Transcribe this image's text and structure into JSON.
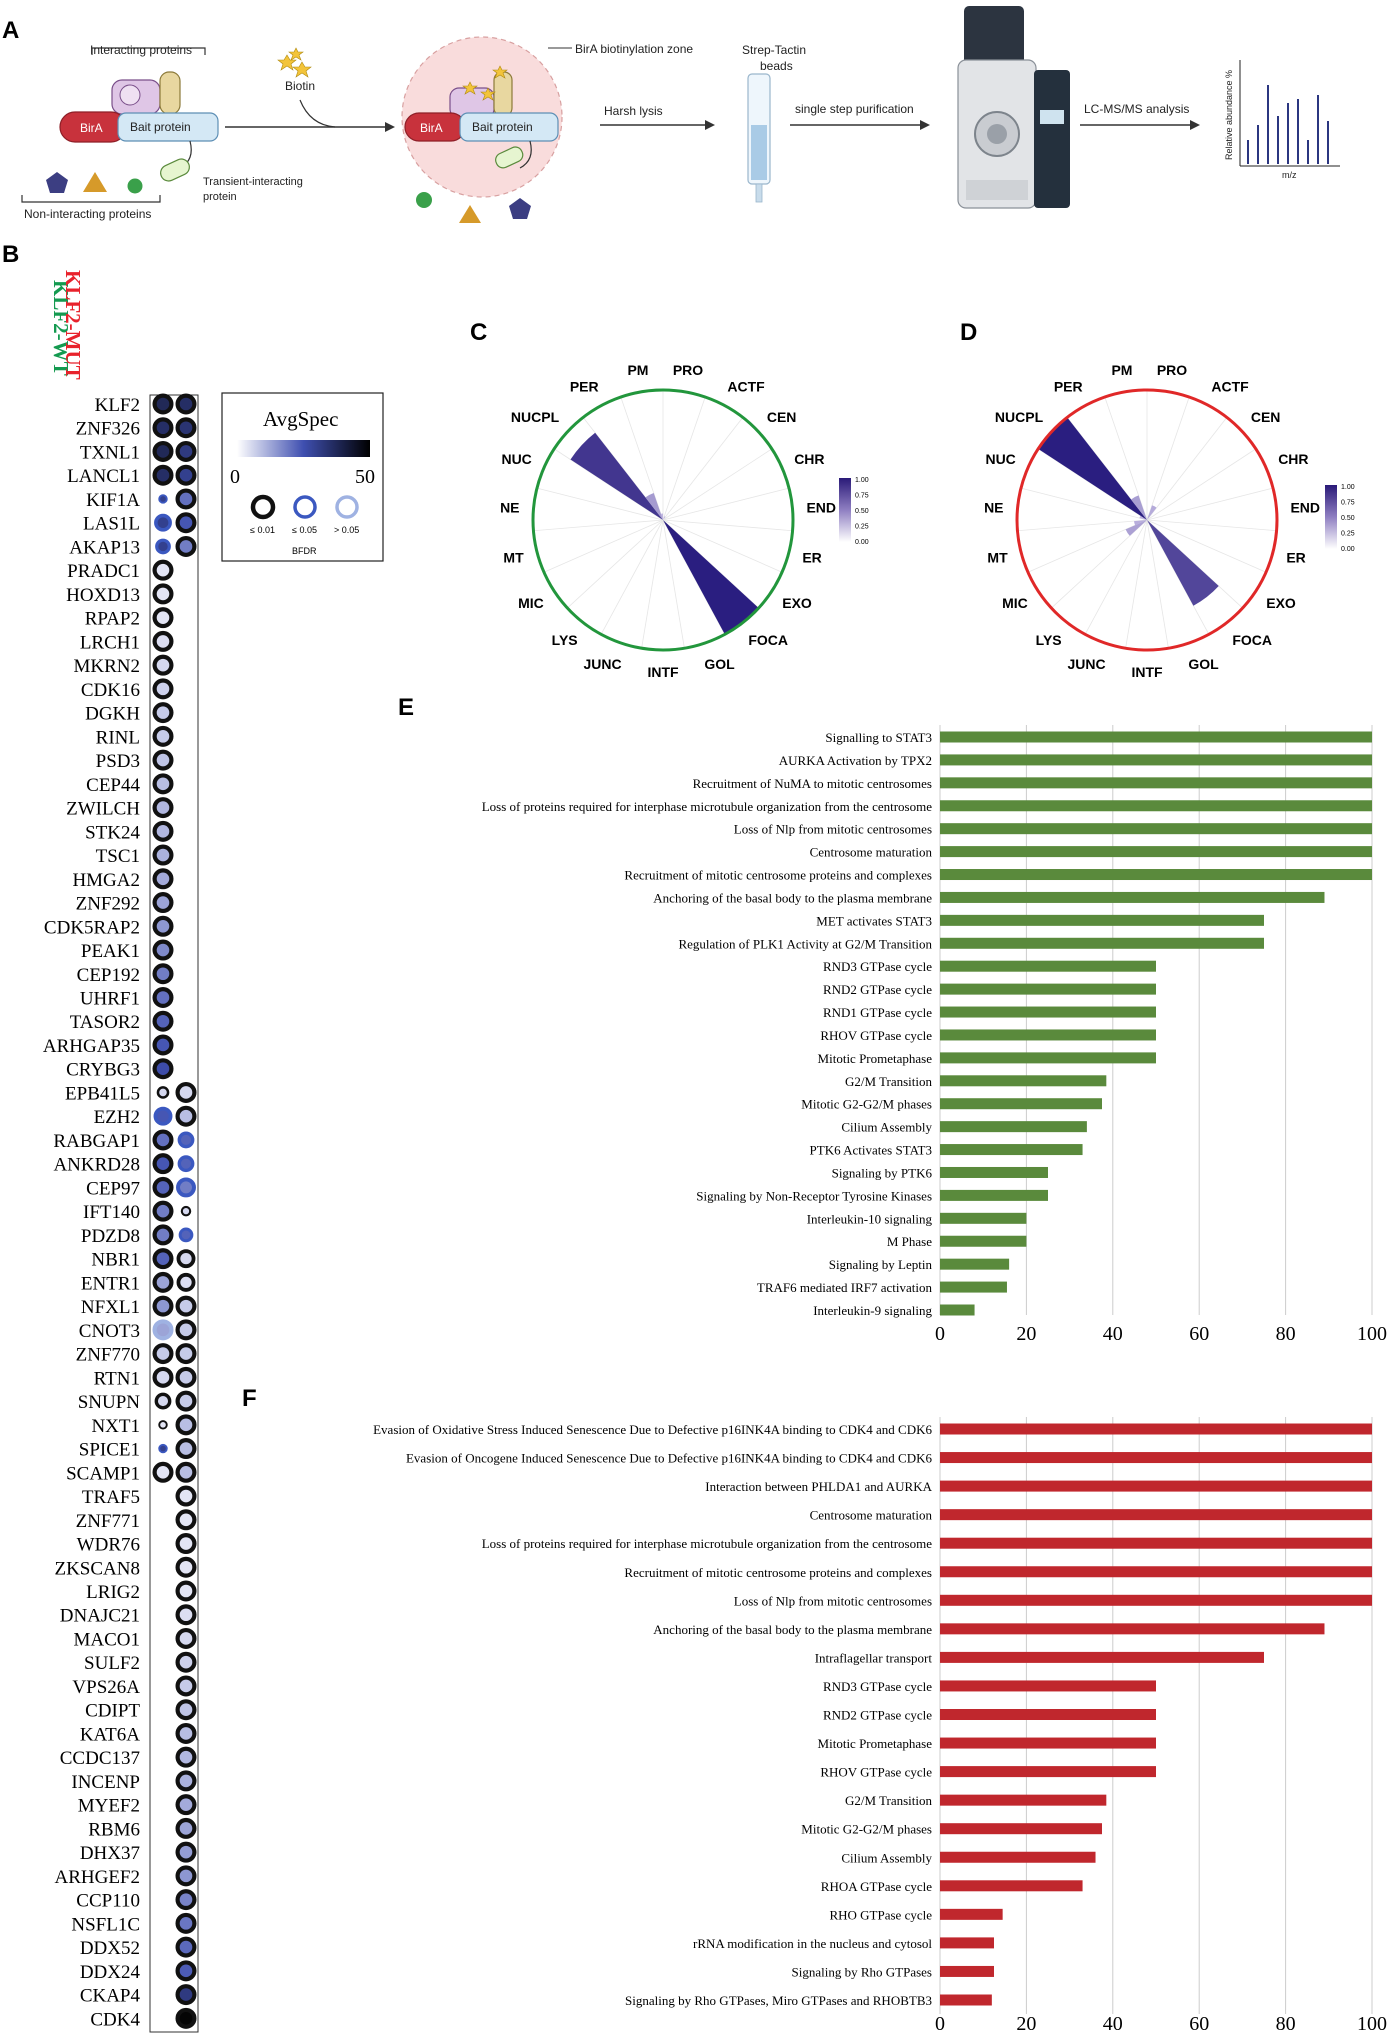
{
  "panel_letters": {
    "a": "A",
    "b": "B",
    "c": "C",
    "d": "D",
    "e": "E",
    "f": "F"
  },
  "workflow": {
    "interacting_proteins": "Interacting proteins",
    "birA": "BirA",
    "bait": "Bait protein",
    "transient": "Transient-interacting",
    "transient2": "protein",
    "non_interacting": "Non-interacting proteins",
    "biotin": "Biotin",
    "zone": "BirA biotinylation zone",
    "harsh_lysis": "Harsh lysis",
    "strep": "Strep-Tactin",
    "beads": "beads",
    "single_step": "single step purification",
    "lcms": "LC-MS/MS analysis",
    "rel_abundance": "Relative abundance %",
    "mz": "m/z",
    "colors": {
      "birA": "#c8323c",
      "bait": "#d4e8f5",
      "zone": "#f9dcdc"
    }
  },
  "dotplot": {
    "col_wt": "KLF2-WT",
    "col_mut": "KLF2-MUT",
    "col_wt_color": "#149a50",
    "col_mut_color": "#e8222c",
    "legend": {
      "title": "AvgSpec",
      "min": "0",
      "max": "50",
      "bfdr_title": "BFDR",
      "bfdr_labels": [
        "≤ 0.01",
        "≤ 0.05",
        "> 0.05"
      ]
    },
    "genes": [
      {
        "name": "KLF2",
        "wt": {
          "a": 38,
          "f": 1,
          "b": 0
        },
        "mut": {
          "a": 36,
          "f": 1,
          "b": 0
        }
      },
      {
        "name": "ZNF326",
        "wt": {
          "a": 36,
          "f": 1,
          "b": 0
        },
        "mut": {
          "a": 34,
          "f": 1,
          "b": 0
        }
      },
      {
        "name": "TXNL1",
        "wt": {
          "a": 38,
          "f": 1,
          "b": 0
        },
        "mut": {
          "a": 32,
          "f": 1,
          "b": 0
        }
      },
      {
        "name": "LANCL1",
        "wt": {
          "a": 36,
          "f": 1,
          "b": 0
        },
        "mut": {
          "a": 30,
          "f": 1,
          "b": 0
        }
      },
      {
        "name": "KIF1A",
        "wt": {
          "a": 30,
          "f": 0.45,
          "b": 1
        },
        "mut": {
          "a": 20,
          "f": 1,
          "b": 0
        }
      },
      {
        "name": "LAS1L",
        "wt": {
          "a": 30,
          "f": 0.85,
          "b": 1
        },
        "mut": {
          "a": 24,
          "f": 1,
          "b": 0
        }
      },
      {
        "name": "AKAP13",
        "wt": {
          "a": 30,
          "f": 0.75,
          "b": 1
        },
        "mut": {
          "a": 18,
          "f": 1,
          "b": 0
        }
      },
      {
        "name": "PRADC1",
        "wt": {
          "a": 2,
          "f": 1,
          "b": 0
        },
        "mut": null
      },
      {
        "name": "HOXD13",
        "wt": {
          "a": 2,
          "f": 1,
          "b": 0
        },
        "mut": null
      },
      {
        "name": "RPAP2",
        "wt": {
          "a": 2,
          "f": 1,
          "b": 0
        },
        "mut": null
      },
      {
        "name": "LRCH1",
        "wt": {
          "a": 3,
          "f": 1,
          "b": 0
        },
        "mut": null
      },
      {
        "name": "MKRN2",
        "wt": {
          "a": 4,
          "f": 1,
          "b": 0
        },
        "mut": null
      },
      {
        "name": "CDK16",
        "wt": {
          "a": 5,
          "f": 1,
          "b": 0
        },
        "mut": null
      },
      {
        "name": "DGKH",
        "wt": {
          "a": 6,
          "f": 1,
          "b": 0
        },
        "mut": null
      },
      {
        "name": "RINL",
        "wt": {
          "a": 6,
          "f": 1,
          "b": 0
        },
        "mut": null
      },
      {
        "name": "PSD3",
        "wt": {
          "a": 7,
          "f": 1,
          "b": 0
        },
        "mut": null
      },
      {
        "name": "CEP44",
        "wt": {
          "a": 8,
          "f": 1,
          "b": 0
        },
        "mut": null
      },
      {
        "name": "ZWILCH",
        "wt": {
          "a": 9,
          "f": 1,
          "b": 0
        },
        "mut": null
      },
      {
        "name": "STK24",
        "wt": {
          "a": 9,
          "f": 1,
          "b": 0
        },
        "mut": null
      },
      {
        "name": "TSC1",
        "wt": {
          "a": 10,
          "f": 1,
          "b": 0
        },
        "mut": null
      },
      {
        "name": "HMGA2",
        "wt": {
          "a": 11,
          "f": 1,
          "b": 0
        },
        "mut": null
      },
      {
        "name": "ZNF292",
        "wt": {
          "a": 12,
          "f": 1,
          "b": 0
        },
        "mut": null
      },
      {
        "name": "CDK5RAP2",
        "wt": {
          "a": 14,
          "f": 1,
          "b": 0
        },
        "mut": null
      },
      {
        "name": "PEAK1",
        "wt": {
          "a": 16,
          "f": 1,
          "b": 0
        },
        "mut": null
      },
      {
        "name": "CEP192",
        "wt": {
          "a": 18,
          "f": 1,
          "b": 0
        },
        "mut": null
      },
      {
        "name": "UHRF1",
        "wt": {
          "a": 20,
          "f": 1,
          "b": 0
        },
        "mut": null
      },
      {
        "name": "TASOR2",
        "wt": {
          "a": 22,
          "f": 1,
          "b": 0
        },
        "mut": null
      },
      {
        "name": "ARHGAP35",
        "wt": {
          "a": 24,
          "f": 1,
          "b": 0
        },
        "mut": null
      },
      {
        "name": "CRYBG3",
        "wt": {
          "a": 26,
          "f": 1,
          "b": 0
        },
        "mut": null
      },
      {
        "name": "EPB41L5",
        "wt": {
          "a": 4,
          "f": 0.6,
          "b": 0
        },
        "mut": {
          "a": 4,
          "f": 1,
          "b": 0
        }
      },
      {
        "name": "EZH2",
        "wt": {
          "a": 24,
          "f": 0.9,
          "b": 1
        },
        "mut": {
          "a": 8,
          "f": 1,
          "b": 0
        }
      },
      {
        "name": "RABGAP1",
        "wt": {
          "a": 20,
          "f": 1,
          "b": 0
        },
        "mut": {
          "a": 22,
          "f": 0.8,
          "b": 1
        }
      },
      {
        "name": "ANKRD28",
        "wt": {
          "a": 24,
          "f": 1,
          "b": 0
        },
        "mut": {
          "a": 22,
          "f": 0.8,
          "b": 1
        }
      },
      {
        "name": "CEP97",
        "wt": {
          "a": 22,
          "f": 1,
          "b": 0
        },
        "mut": {
          "a": 18,
          "f": 0.95,
          "b": 1
        }
      },
      {
        "name": "IFT140",
        "wt": {
          "a": 18,
          "f": 1,
          "b": 0
        },
        "mut": {
          "a": 4,
          "f": 0.5,
          "b": 0
        }
      },
      {
        "name": "PDZD8",
        "wt": {
          "a": 18,
          "f": 1,
          "b": 0
        },
        "mut": {
          "a": 22,
          "f": 0.7,
          "b": 1
        }
      },
      {
        "name": "NBR1",
        "wt": {
          "a": 22,
          "f": 1,
          "b": 0
        },
        "mut": {
          "a": 4,
          "f": 0.9,
          "b": 0
        }
      },
      {
        "name": "ENTR1",
        "wt": {
          "a": 12,
          "f": 1,
          "b": 0
        },
        "mut": {
          "a": 3,
          "f": 0.9,
          "b": 0
        }
      },
      {
        "name": "NFXL1",
        "wt": {
          "a": 14,
          "f": 1,
          "b": 0
        },
        "mut": {
          "a": 6,
          "f": 1,
          "b": 0
        }
      },
      {
        "name": "CNOT3",
        "wt": {
          "a": 12,
          "f": 1,
          "b": 2
        },
        "mut": {
          "a": 6,
          "f": 1,
          "b": 0
        }
      },
      {
        "name": "ZNF770",
        "wt": {
          "a": 6,
          "f": 1,
          "b": 0
        },
        "mut": {
          "a": 6,
          "f": 1,
          "b": 0
        }
      },
      {
        "name": "RTN1",
        "wt": {
          "a": 4,
          "f": 1,
          "b": 0
        },
        "mut": {
          "a": 6,
          "f": 1,
          "b": 0
        }
      },
      {
        "name": "SNUPN",
        "wt": {
          "a": 4,
          "f": 0.8,
          "b": 0
        },
        "mut": {
          "a": 6,
          "f": 1,
          "b": 0
        }
      },
      {
        "name": "NXT1",
        "wt": {
          "a": 2,
          "f": 0.45,
          "b": 0
        },
        "mut": {
          "a": 8,
          "f": 1,
          "b": 0
        }
      },
      {
        "name": "SPICE1",
        "wt": {
          "a": 30,
          "f": 0.45,
          "b": 1
        },
        "mut": {
          "a": 8,
          "f": 1,
          "b": 0
        }
      },
      {
        "name": "SCAMP1",
        "wt": {
          "a": 2,
          "f": 1,
          "b": 0
        },
        "mut": {
          "a": 8,
          "f": 1,
          "b": 0
        }
      },
      {
        "name": "TRAF5",
        "wt": null,
        "mut": {
          "a": 2,
          "f": 1,
          "b": 0
        }
      },
      {
        "name": "ZNF771",
        "wt": null,
        "mut": {
          "a": 2,
          "f": 1,
          "b": 0
        }
      },
      {
        "name": "WDR76",
        "wt": null,
        "mut": {
          "a": 2,
          "f": 1,
          "b": 0
        }
      },
      {
        "name": "ZKSCAN8",
        "wt": null,
        "mut": {
          "a": 2,
          "f": 1,
          "b": 0
        }
      },
      {
        "name": "LRIG2",
        "wt": null,
        "mut": {
          "a": 2,
          "f": 1,
          "b": 0
        }
      },
      {
        "name": "DNAJC21",
        "wt": null,
        "mut": {
          "a": 3,
          "f": 1,
          "b": 0
        }
      },
      {
        "name": "MACO1",
        "wt": null,
        "mut": {
          "a": 4,
          "f": 1,
          "b": 0
        }
      },
      {
        "name": "SULF2",
        "wt": null,
        "mut": {
          "a": 5,
          "f": 1,
          "b": 0
        }
      },
      {
        "name": "VPS26A",
        "wt": null,
        "mut": {
          "a": 6,
          "f": 1,
          "b": 0
        }
      },
      {
        "name": "CDIPT",
        "wt": null,
        "mut": {
          "a": 7,
          "f": 1,
          "b": 0
        }
      },
      {
        "name": "KAT6A",
        "wt": null,
        "mut": {
          "a": 8,
          "f": 1,
          "b": 0
        }
      },
      {
        "name": "CCDC137",
        "wt": null,
        "mut": {
          "a": 9,
          "f": 1,
          "b": 0
        }
      },
      {
        "name": "INCENP",
        "wt": null,
        "mut": {
          "a": 10,
          "f": 1,
          "b": 0
        }
      },
      {
        "name": "MYEF2",
        "wt": null,
        "mut": {
          "a": 11,
          "f": 1,
          "b": 0
        }
      },
      {
        "name": "RBM6",
        "wt": null,
        "mut": {
          "a": 12,
          "f": 1,
          "b": 0
        }
      },
      {
        "name": "DHX37",
        "wt": null,
        "mut": {
          "a": 13,
          "f": 1,
          "b": 0
        }
      },
      {
        "name": "ARHGEF2",
        "wt": null,
        "mut": {
          "a": 14,
          "f": 1,
          "b": 0
        }
      },
      {
        "name": "CCP110",
        "wt": null,
        "mut": {
          "a": 17,
          "f": 1,
          "b": 0
        }
      },
      {
        "name": "NSFL1C",
        "wt": null,
        "mut": {
          "a": 19,
          "f": 1,
          "b": 0
        }
      },
      {
        "name": "DDX52",
        "wt": null,
        "mut": {
          "a": 21,
          "f": 1,
          "b": 0
        }
      },
      {
        "name": "DDX24",
        "wt": null,
        "mut": {
          "a": 23,
          "f": 1,
          "b": 0
        }
      },
      {
        "name": "CKAP4",
        "wt": null,
        "mut": {
          "a": 32,
          "f": 1,
          "b": 0
        }
      },
      {
        "name": "CDK4",
        "wt": null,
        "mut": {
          "a": 50,
          "f": 1,
          "b": 0
        }
      }
    ]
  },
  "chart_data": [
    {
      "type": "polar-bar",
      "panel": "C",
      "ring_color": "#22963c",
      "categories": [
        "PRO",
        "ACTF",
        "CEN",
        "CHR",
        "END",
        "ER",
        "EXO",
        "FOCA",
        "GOL",
        "INTF",
        "JUNC",
        "LYS",
        "MIC",
        "MT",
        "NE",
        "NUC",
        "NUCPL",
        "PER",
        "PM"
      ],
      "values": [
        0,
        0.03,
        0,
        0,
        0,
        0,
        0,
        1.0,
        0,
        0,
        0,
        0,
        0,
        0,
        0,
        0,
        0.85,
        0.22,
        0.05
      ],
      "colorbar": {
        "ticks": [
          "1.00",
          "0.75",
          "0.50",
          "0.25",
          "0.00"
        ]
      }
    },
    {
      "type": "polar-bar",
      "panel": "D",
      "ring_color": "#e02828",
      "categories": [
        "PRO",
        "ACTF",
        "CEN",
        "CHR",
        "END",
        "ER",
        "EXO",
        "FOCA",
        "GOL",
        "INTF",
        "JUNC",
        "LYS",
        "MIC",
        "MT",
        "NE",
        "NUC",
        "NUCPL",
        "PER",
        "PM"
      ],
      "values": [
        0,
        0.12,
        0,
        0,
        0,
        0,
        0,
        0.75,
        0,
        0,
        0,
        0,
        0.18,
        0.1,
        0,
        0.06,
        1.0,
        0.2,
        0
      ],
      "colorbar": {
        "ticks": [
          "1.00",
          "0.75",
          "0.50",
          "0.25",
          "0.00"
        ]
      }
    },
    {
      "type": "bar",
      "orientation": "horizontal",
      "panel": "E",
      "color": "#5a8a3c",
      "xlim": [
        0,
        100
      ],
      "xticks": [
        "0",
        "20",
        "40",
        "60",
        "80",
        "100"
      ],
      "categories": [
        "Signalling to STAT3",
        "AURKA Activation by TPX2",
        "Recruitment of NuMA to mitotic centrosomes",
        "Loss of proteins required for interphase microtubule organization from the centrosome",
        "Loss of Nlp from mitotic centrosomes",
        "Centrosome maturation",
        "Recruitment of mitotic centrosome proteins and complexes",
        "Anchoring of the basal body to the plasma membrane",
        "MET activates STAT3",
        "Regulation of PLK1 Activity at G2/M Transition",
        "RND3 GTPase cycle",
        "RND2 GTPase cycle",
        "RND1 GTPase cycle",
        "RHOV GTPase cycle",
        "Mitotic Prometaphase",
        "G2/M Transition",
        "Mitotic G2-G2/M phases",
        "Cilium Assembly",
        "PTK6 Activates STAT3",
        "Signaling by PTK6",
        "Signaling by Non-Receptor Tyrosine Kinases",
        "Interleukin-10 signaling",
        "M Phase",
        "Signaling by Leptin",
        "TRAF6 mediated IRF7 activation",
        "Interleukin-9 signaling"
      ],
      "values": [
        100,
        100,
        100,
        100,
        100,
        100,
        100,
        89,
        75,
        75,
        50,
        50,
        50,
        50,
        50,
        38.5,
        37.5,
        34,
        33,
        25,
        25,
        20,
        20,
        16,
        15.5,
        8
      ]
    },
    {
      "type": "bar",
      "orientation": "horizontal",
      "panel": "F",
      "color": "#c0272d",
      "xlim": [
        0,
        100
      ],
      "xticks": [
        "0",
        "20",
        "40",
        "60",
        "80",
        "100"
      ],
      "categories": [
        "Evasion of Oxidative Stress Induced Senescence Due to Defective p16INK4A binding to CDK4 and CDK6",
        "Evasion of Oncogene Induced Senescence Due to Defective p16INK4A binding to CDK4 and CDK6",
        "Interaction between PHLDA1 and AURKA",
        "Centrosome maturation",
        "Loss of proteins required for interphase microtubule organization from the centrosome",
        "Recruitment of mitotic centrosome proteins and complexes",
        "Loss of Nlp from mitotic centrosomes",
        "Anchoring of the basal body to the plasma membrane",
        "Intraflagellar transport",
        "RND3 GTPase cycle",
        "RND2 GTPase cycle",
        "Mitotic Prometaphase",
        "RHOV GTPase cycle",
        "G2/M Transition",
        "Mitotic G2-G2/M phases",
        "Cilium Assembly",
        "RHOA GTPase cycle",
        "RHO GTPase cycle",
        "rRNA modification in the nucleus and cytosol",
        "Signaling by Rho GTPases",
        "Signaling by Rho GTPases, Miro GTPases and RHOBTB3"
      ],
      "values": [
        100,
        100,
        100,
        100,
        100,
        100,
        100,
        89,
        75,
        50,
        50,
        50,
        50,
        38.5,
        37.5,
        36,
        33,
        14.5,
        12.5,
        12.5,
        12
      ]
    }
  ]
}
